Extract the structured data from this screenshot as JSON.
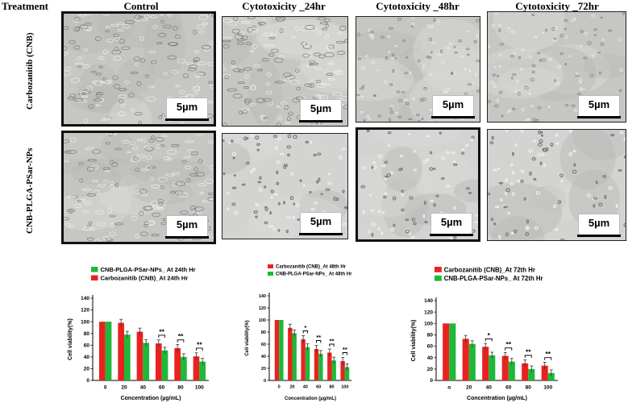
{
  "headers": {
    "treatment": "Treatment",
    "control": "Control",
    "cyto_24": "Cytotoxicity _24hr",
    "cyto_48": "Cytotoxicity _48hr",
    "cyto_72": "Cytotoxicity _72hr"
  },
  "rows": {
    "cnb": "Carbozanitib (CNB)",
    "nps": "CNB-PLGA-PSar-NPs"
  },
  "scale_bar": "5µm",
  "colors": {
    "red": "#e8231f",
    "green": "#1fb839",
    "panel_bg": "#c9c9c7"
  },
  "chart_data": [
    {
      "type": "bar",
      "categories": [
        "0",
        "20",
        "40",
        "60",
        "80",
        "100"
      ],
      "series": [
        {
          "name": "Carbozanitib (CNB)_At 24th Hr",
          "values": [
            100,
            98,
            83,
            63,
            55,
            41
          ]
        },
        {
          "name": "CNB-PLGA-PSar-NPs_ At 24th Hr",
          "values": [
            100,
            78,
            64,
            51,
            40,
            32
          ]
        }
      ],
      "legend_order": [
        1,
        0
      ],
      "legend": "top-left",
      "significance": [
        "",
        "",
        "",
        "**",
        "**",
        "**"
      ],
      "xlabel": "Concentration (µg/mL)",
      "ylabel": "Cell viability(%)",
      "ylim": [
        0,
        140
      ],
      "yticks": [
        "0",
        "20",
        "40",
        "60",
        "80",
        "100",
        "120",
        "140"
      ]
    },
    {
      "type": "bar",
      "categories": [
        "0",
        "20",
        "40",
        "60",
        "80",
        "100"
      ],
      "series": [
        {
          "name": "Carbozanitib (CNB)_At 48th Hr",
          "values": [
            100,
            87,
            68,
            52,
            46,
            32
          ]
        },
        {
          "name": "CNB-PLGA-PSar-NPs_ At 48th Hr",
          "values": [
            100,
            78,
            55,
            44,
            33,
            22
          ]
        }
      ],
      "legend_order": [
        0,
        1
      ],
      "legend": "top-left",
      "significance": [
        "",
        "",
        "*",
        "**",
        "**",
        "**"
      ],
      "xlabel": "Concentration (µg/mL)",
      "ylabel": "Cell viability(%)",
      "ylim": [
        0,
        140
      ],
      "yticks": [
        "0",
        "20",
        "40",
        "60",
        "80",
        "100",
        "120",
        "140"
      ]
    },
    {
      "type": "bar",
      "categories": [
        "o",
        "20",
        "40",
        "60",
        "80",
        "100"
      ],
      "series": [
        {
          "name": "Carbozanitib (CNB)_At 72th Hr",
          "values": [
            100,
            73,
            59,
            43,
            30,
            26
          ]
        },
        {
          "name": "CNB-PLGA-PSar-NPs_ At 72th Hr",
          "values": [
            100,
            64,
            44,
            33,
            20,
            13
          ]
        }
      ],
      "legend_order": [
        0,
        1
      ],
      "legend": "top-left",
      "significance": [
        "",
        "",
        "*",
        "**",
        "**",
        "**"
      ],
      "xlabel": "Concentration (µg/mL)",
      "ylabel": "Cell viability(%)",
      "ylim": [
        0,
        140
      ],
      "yticks": [
        "0",
        "20",
        "40",
        "60",
        "80",
        "100",
        "120",
        "140"
      ]
    }
  ]
}
